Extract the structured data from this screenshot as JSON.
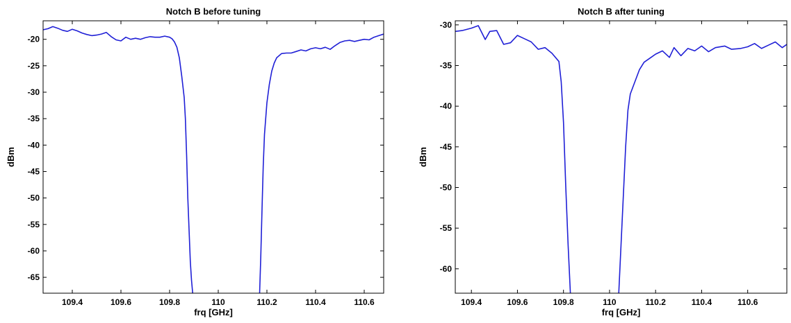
{
  "chart_data": [
    {
      "type": "line",
      "title": "Notch B before tuning",
      "xlabel": "frq [GHz]",
      "ylabel": "dBm",
      "xlim": [
        109.28,
        110.68
      ],
      "ylim": [
        -68,
        -16.5
      ],
      "xticks": [
        109.4,
        109.6,
        109.8,
        110,
        110.2,
        110.4,
        110.6
      ],
      "xtick_labels": [
        "109.4",
        "109.6",
        "109.8",
        "110",
        "110.2",
        "110.4",
        "110.6"
      ],
      "yticks": [
        -20,
        -25,
        -30,
        -35,
        -40,
        -45,
        -50,
        -55,
        -60,
        -65
      ],
      "ytick_labels": [
        "-20",
        "-25",
        "-30",
        "-35",
        "-40",
        "-45",
        "-50",
        "-55",
        "-60",
        "-65"
      ],
      "grid": false,
      "color": "#1f1fd6",
      "series": [
        {
          "segments": [
            [
              [
                109.28,
                -18.2
              ],
              [
                109.3,
                -18.0
              ],
              [
                109.32,
                -17.6
              ],
              [
                109.34,
                -17.9
              ],
              [
                109.36,
                -18.3
              ],
              [
                109.38,
                -18.5
              ],
              [
                109.4,
                -18.1
              ],
              [
                109.42,
                -18.4
              ],
              [
                109.44,
                -18.8
              ],
              [
                109.46,
                -19.1
              ],
              [
                109.48,
                -19.3
              ],
              [
                109.5,
                -19.2
              ],
              [
                109.52,
                -19.0
              ],
              [
                109.54,
                -18.7
              ],
              [
                109.56,
                -19.5
              ],
              [
                109.58,
                -20.1
              ],
              [
                109.6,
                -20.3
              ],
              [
                109.62,
                -19.6
              ],
              [
                109.64,
                -20.0
              ],
              [
                109.66,
                -19.8
              ],
              [
                109.68,
                -20.0
              ],
              [
                109.7,
                -19.7
              ],
              [
                109.72,
                -19.5
              ],
              [
                109.74,
                -19.6
              ],
              [
                109.76,
                -19.6
              ],
              [
                109.78,
                -19.4
              ],
              [
                109.8,
                -19.6
              ],
              [
                109.81,
                -19.9
              ],
              [
                109.82,
                -20.5
              ],
              [
                109.83,
                -21.5
              ],
              [
                109.84,
                -23.5
              ],
              [
                109.85,
                -27.0
              ],
              [
                109.86,
                -31.0
              ],
              [
                109.865,
                -35.0
              ],
              [
                109.87,
                -42.0
              ],
              [
                109.875,
                -50.0
              ],
              [
                109.88,
                -56.0
              ],
              [
                109.885,
                -62.0
              ],
              [
                109.89,
                -65.5
              ],
              [
                109.895,
                -68.0
              ]
            ],
            [
              [
                110.17,
                -68.0
              ],
              [
                110.175,
                -61.0
              ],
              [
                110.18,
                -52.0
              ],
              [
                110.185,
                -44.0
              ],
              [
                110.19,
                -38.0
              ],
              [
                110.2,
                -32.0
              ],
              [
                110.21,
                -28.5
              ],
              [
                110.22,
                -26.0
              ],
              [
                110.23,
                -24.5
              ],
              [
                110.24,
                -23.5
              ],
              [
                110.26,
                -22.7
              ],
              [
                110.28,
                -22.6
              ],
              [
                110.3,
                -22.6
              ],
              [
                110.32,
                -22.3
              ],
              [
                110.34,
                -22.0
              ],
              [
                110.36,
                -22.2
              ],
              [
                110.38,
                -21.8
              ],
              [
                110.4,
                -21.6
              ],
              [
                110.42,
                -21.8
              ],
              [
                110.44,
                -21.5
              ],
              [
                110.46,
                -21.9
              ],
              [
                110.48,
                -21.2
              ],
              [
                110.5,
                -20.6
              ],
              [
                110.52,
                -20.3
              ],
              [
                110.54,
                -20.2
              ],
              [
                110.56,
                -20.4
              ],
              [
                110.58,
                -20.2
              ],
              [
                110.6,
                -20.0
              ],
              [
                110.62,
                -20.1
              ],
              [
                110.64,
                -19.6
              ],
              [
                110.66,
                -19.3
              ],
              [
                110.68,
                -19.0
              ]
            ]
          ]
        }
      ]
    },
    {
      "type": "line",
      "title": "Notch B after tuning",
      "xlabel": "frq [GHz]",
      "ylabel": "dBm",
      "xlim": [
        109.33,
        110.77
      ],
      "ylim": [
        -63,
        -29.5
      ],
      "xticks": [
        109.4,
        109.6,
        109.8,
        110,
        110.2,
        110.4,
        110.6
      ],
      "xtick_labels": [
        "109.4",
        "109.6",
        "109.8",
        "110",
        "110.2",
        "110.4",
        "110.6"
      ],
      "yticks": [
        -30,
        -35,
        -40,
        -45,
        -50,
        -55,
        -60
      ],
      "ytick_labels": [
        "-30",
        "-35",
        "-40",
        "-45",
        "-50",
        "-55",
        "-60"
      ],
      "grid": false,
      "color": "#1f1fd6",
      "series": [
        {
          "segments": [
            [
              [
                109.33,
                -30.8
              ],
              [
                109.36,
                -30.7
              ],
              [
                109.4,
                -30.4
              ],
              [
                109.43,
                -30.1
              ],
              [
                109.46,
                -31.8
              ],
              [
                109.48,
                -30.8
              ],
              [
                109.51,
                -30.7
              ],
              [
                109.54,
                -32.4
              ],
              [
                109.57,
                -32.2
              ],
              [
                109.6,
                -31.3
              ],
              [
                109.63,
                -31.7
              ],
              [
                109.66,
                -32.1
              ],
              [
                109.69,
                -33.0
              ],
              [
                109.72,
                -32.8
              ],
              [
                109.75,
                -33.5
              ],
              [
                109.78,
                -34.5
              ],
              [
                109.79,
                -37.0
              ],
              [
                109.8,
                -42.0
              ],
              [
                109.81,
                -50.0
              ],
              [
                109.82,
                -57.0
              ],
              [
                109.83,
                -63.0
              ]
            ],
            [
              [
                110.04,
                -63.0
              ],
              [
                110.05,
                -57.0
              ],
              [
                110.06,
                -51.0
              ],
              [
                110.07,
                -45.0
              ],
              [
                110.08,
                -40.5
              ],
              [
                110.09,
                -38.5
              ],
              [
                110.11,
                -37.0
              ],
              [
                110.13,
                -35.5
              ],
              [
                110.15,
                -34.6
              ],
              [
                110.18,
                -34.0
              ],
              [
                110.2,
                -33.6
              ],
              [
                110.23,
                -33.2
              ],
              [
                110.26,
                -34.0
              ],
              [
                110.28,
                -32.8
              ],
              [
                110.31,
                -33.8
              ],
              [
                110.34,
                -32.9
              ],
              [
                110.37,
                -33.2
              ],
              [
                110.4,
                -32.6
              ],
              [
                110.43,
                -33.3
              ],
              [
                110.46,
                -32.8
              ],
              [
                110.5,
                -32.6
              ],
              [
                110.53,
                -33.0
              ],
              [
                110.57,
                -32.9
              ],
              [
                110.6,
                -32.7
              ],
              [
                110.63,
                -32.3
              ],
              [
                110.66,
                -32.9
              ],
              [
                110.69,
                -32.5
              ],
              [
                110.72,
                -32.1
              ],
              [
                110.75,
                -32.8
              ],
              [
                110.77,
                -32.4
              ]
            ]
          ]
        }
      ]
    }
  ]
}
